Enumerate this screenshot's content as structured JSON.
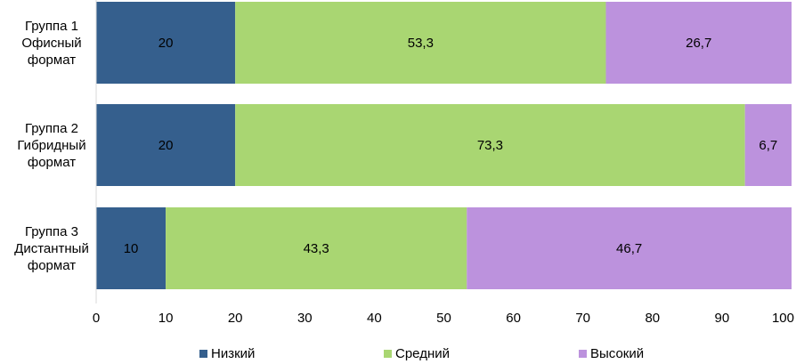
{
  "chart_data": {
    "type": "bar",
    "orientation": "horizontal",
    "stacked": true,
    "categories": [
      [
        "Группа 1",
        "Офисный",
        "формат"
      ],
      [
        "Группа 2",
        "Гибридный",
        "формат"
      ],
      [
        "Группа 3",
        "Дистантный",
        "формат"
      ]
    ],
    "series": [
      {
        "name": "Низкий",
        "color": "#355F8D",
        "values": [
          20,
          20,
          10
        ],
        "labels": [
          "20",
          "20",
          "10"
        ]
      },
      {
        "name": "Средний",
        "color": "#A9D672",
        "values": [
          53.3,
          73.3,
          43.3
        ],
        "labels": [
          "53,3",
          "73,3",
          "43,3"
        ]
      },
      {
        "name": "Высокий",
        "color": "#BC92DD",
        "values": [
          26.7,
          6.7,
          46.7
        ],
        "labels": [
          "26,7",
          "6,7",
          "46,7"
        ]
      }
    ],
    "xlim": [
      0,
      100
    ],
    "xticks": [
      0,
      10,
      20,
      30,
      40,
      50,
      60,
      70,
      80,
      90,
      100
    ],
    "legend_position": "bottom",
    "grid": false
  }
}
